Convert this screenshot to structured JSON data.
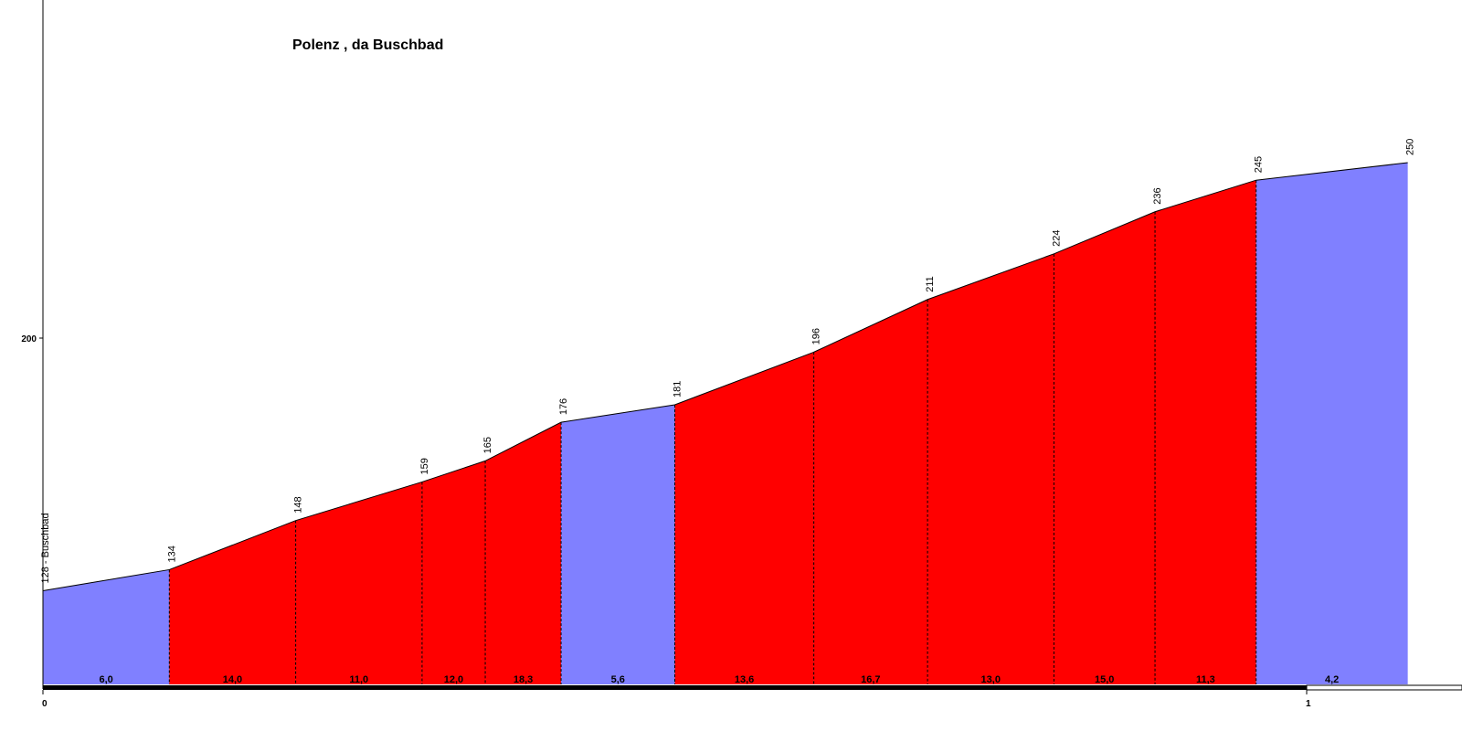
{
  "chart_data": {
    "type": "area",
    "title": "Polenz , da Buschbad",
    "start_label": "128 - Buschbad",
    "x_unit": "km",
    "y_unit": "m",
    "xlim": [
      0,
      1.12
    ],
    "ylim": [
      120,
      260
    ],
    "x_ticks": [
      "0",
      "1"
    ],
    "y_ticks": [
      "200"
    ],
    "grid": false,
    "points": [
      {
        "x": 0.0,
        "y": 128
      },
      {
        "x": 0.1,
        "y": 134
      },
      {
        "x": 0.2,
        "y": 148
      },
      {
        "x": 0.3,
        "y": 159
      },
      {
        "x": 0.35,
        "y": 165
      },
      {
        "x": 0.41,
        "y": 176
      },
      {
        "x": 0.5,
        "y": 181
      },
      {
        "x": 0.61,
        "y": 196
      },
      {
        "x": 0.7,
        "y": 211
      },
      {
        "x": 0.8,
        "y": 224
      },
      {
        "x": 0.88,
        "y": 236
      },
      {
        "x": 0.96,
        "y": 245
      },
      {
        "x": 1.08,
        "y": 250
      }
    ],
    "elevation_labels": [
      "128 - Buschbad",
      "134",
      "148",
      "159",
      "165",
      "176",
      "181",
      "196",
      "211",
      "224",
      "236",
      "245",
      "250"
    ],
    "segments": [
      {
        "gradient": "6,0",
        "color": "#8080ff"
      },
      {
        "gradient": "14,0",
        "color": "#ff0000"
      },
      {
        "gradient": "11,0",
        "color": "#ff0000"
      },
      {
        "gradient": "12,0",
        "color": "#ff0000"
      },
      {
        "gradient": "18,3",
        "color": "#ff0000"
      },
      {
        "gradient": "5,6",
        "color": "#8080ff"
      },
      {
        "gradient": "13,6",
        "color": "#ff0000"
      },
      {
        "gradient": "16,7",
        "color": "#ff0000"
      },
      {
        "gradient": "13,0",
        "color": "#ff0000"
      },
      {
        "gradient": "15,0",
        "color": "#ff0000"
      },
      {
        "gradient": "11,3",
        "color": "#ff0000"
      },
      {
        "gradient": "4,2",
        "color": "#8080ff"
      }
    ]
  }
}
